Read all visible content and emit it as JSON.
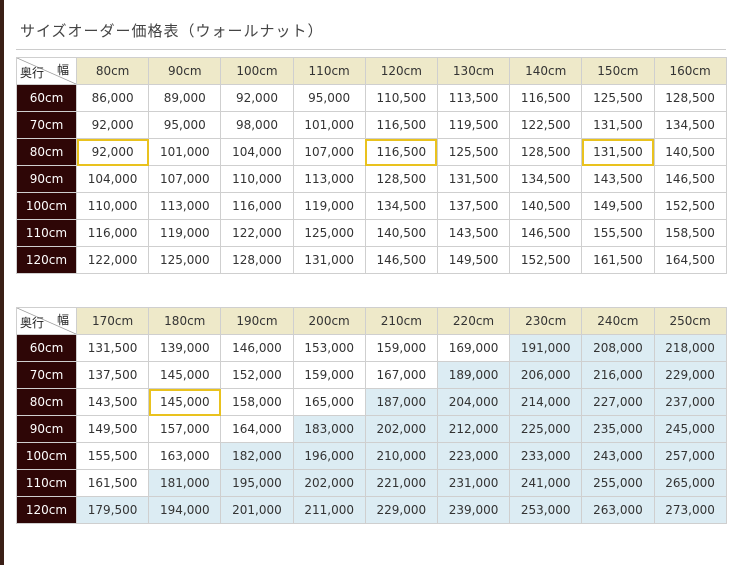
{
  "title": "サイズオーダー価格表（ウォールナット）",
  "corner": {
    "width_label": "幅",
    "depth_label": "奥行"
  },
  "colors": {
    "header_bg": "#eee9c9",
    "row_header_bg": "#2e0606",
    "highlight_border": "#e9c21e",
    "tinted_cell_bg": "#dcecf3"
  },
  "tables": [
    {
      "widths": [
        "80cm",
        "90cm",
        "100cm",
        "110cm",
        "120cm",
        "130cm",
        "140cm",
        "150cm",
        "160cm"
      ],
      "rows": [
        {
          "depth": "60cm",
          "prices": [
            "86,000",
            "89,000",
            "92,000",
            "95,000",
            "110,500",
            "113,500",
            "116,500",
            "125,500",
            "128,500"
          ]
        },
        {
          "depth": "70cm",
          "prices": [
            "92,000",
            "95,000",
            "98,000",
            "101,000",
            "116,500",
            "119,500",
            "122,500",
            "131,500",
            "134,500"
          ]
        },
        {
          "depth": "80cm",
          "prices": [
            "92,000",
            "101,000",
            "104,000",
            "107,000",
            "116,500",
            "125,500",
            "128,500",
            "131,500",
            "140,500"
          ]
        },
        {
          "depth": "90cm",
          "prices": [
            "104,000",
            "107,000",
            "110,000",
            "113,000",
            "128,500",
            "131,500",
            "134,500",
            "143,500",
            "146,500"
          ]
        },
        {
          "depth": "100cm",
          "prices": [
            "110,000",
            "113,000",
            "116,000",
            "119,000",
            "134,500",
            "137,500",
            "140,500",
            "149,500",
            "152,500"
          ]
        },
        {
          "depth": "110cm",
          "prices": [
            "116,000",
            "119,000",
            "122,000",
            "125,000",
            "140,500",
            "143,500",
            "146,500",
            "155,500",
            "158,500"
          ]
        },
        {
          "depth": "120cm",
          "prices": [
            "122,000",
            "125,000",
            "128,000",
            "131,000",
            "146,500",
            "149,500",
            "152,500",
            "161,500",
            "164,500"
          ]
        }
      ],
      "highlighted": [
        [
          2,
          0
        ],
        [
          2,
          4
        ],
        [
          2,
          7
        ]
      ],
      "tinted": []
    },
    {
      "widths": [
        "170cm",
        "180cm",
        "190cm",
        "200cm",
        "210cm",
        "220cm",
        "230cm",
        "240cm",
        "250cm"
      ],
      "rows": [
        {
          "depth": "60cm",
          "prices": [
            "131,500",
            "139,000",
            "146,000",
            "153,000",
            "159,000",
            "169,000",
            "191,000",
            "208,000",
            "218,000"
          ]
        },
        {
          "depth": "70cm",
          "prices": [
            "137,500",
            "145,000",
            "152,000",
            "159,000",
            "167,000",
            "189,000",
            "206,000",
            "216,000",
            "229,000"
          ]
        },
        {
          "depth": "80cm",
          "prices": [
            "143,500",
            "145,000",
            "158,000",
            "165,000",
            "187,000",
            "204,000",
            "214,000",
            "227,000",
            "237,000"
          ]
        },
        {
          "depth": "90cm",
          "prices": [
            "149,500",
            "157,000",
            "164,000",
            "183,000",
            "202,000",
            "212,000",
            "225,000",
            "235,000",
            "245,000"
          ]
        },
        {
          "depth": "100cm",
          "prices": [
            "155,500",
            "163,000",
            "182,000",
            "196,000",
            "210,000",
            "223,000",
            "233,000",
            "243,000",
            "257,000"
          ]
        },
        {
          "depth": "110cm",
          "prices": [
            "161,500",
            "181,000",
            "195,000",
            "202,000",
            "221,000",
            "231,000",
            "241,000",
            "255,000",
            "265,000"
          ]
        },
        {
          "depth": "120cm",
          "prices": [
            "179,500",
            "194,000",
            "201,000",
            "211,000",
            "229,000",
            "239,000",
            "253,000",
            "263,000",
            "273,000"
          ]
        }
      ],
      "highlighted": [
        [
          2,
          1
        ]
      ],
      "tinted": [
        [
          0,
          6
        ],
        [
          0,
          7
        ],
        [
          0,
          8
        ],
        [
          1,
          5
        ],
        [
          1,
          6
        ],
        [
          1,
          7
        ],
        [
          1,
          8
        ],
        [
          2,
          4
        ],
        [
          2,
          5
        ],
        [
          2,
          6
        ],
        [
          2,
          7
        ],
        [
          2,
          8
        ],
        [
          3,
          3
        ],
        [
          3,
          4
        ],
        [
          3,
          5
        ],
        [
          3,
          6
        ],
        [
          3,
          7
        ],
        [
          3,
          8
        ],
        [
          4,
          2
        ],
        [
          4,
          3
        ],
        [
          4,
          4
        ],
        [
          4,
          5
        ],
        [
          4,
          6
        ],
        [
          4,
          7
        ],
        [
          4,
          8
        ],
        [
          5,
          1
        ],
        [
          5,
          2
        ],
        [
          5,
          3
        ],
        [
          5,
          4
        ],
        [
          5,
          5
        ],
        [
          5,
          6
        ],
        [
          5,
          7
        ],
        [
          5,
          8
        ],
        [
          6,
          0
        ],
        [
          6,
          1
        ],
        [
          6,
          2
        ],
        [
          6,
          3
        ],
        [
          6,
          4
        ],
        [
          6,
          5
        ],
        [
          6,
          6
        ],
        [
          6,
          7
        ],
        [
          6,
          8
        ]
      ]
    }
  ]
}
